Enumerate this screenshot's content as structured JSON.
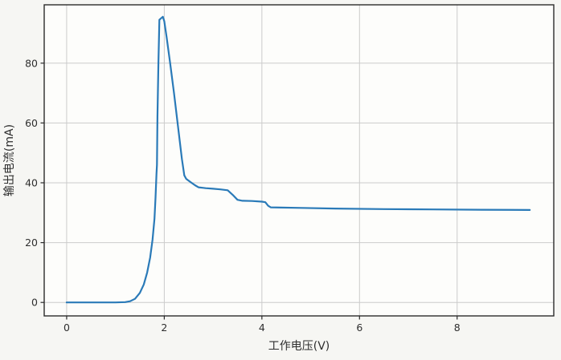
{
  "figure": {
    "background": "#f6f6f3",
    "plot_background": "#fdfdfb",
    "line_color": "#2a7ab8",
    "grid_color": "#cbcbcb",
    "spine_color": "#2b2b2b",
    "tick_label_color": "#2e2e2e"
  },
  "chart_data": {
    "type": "line",
    "title": "",
    "xlabel": "工作电压(V)",
    "ylabel": "输出电流(mA)",
    "x_ticks": [
      0,
      2,
      4,
      6,
      8
    ],
    "y_ticks": [
      0,
      20,
      40,
      60,
      80
    ],
    "xlim": [
      -0.46,
      9.98
    ],
    "ylim": [
      -4.5,
      99.5
    ],
    "grid": true,
    "legend_position": "none",
    "series": [
      {
        "name": "输出电流",
        "x": [
          0,
          0.6,
          1.0,
          1.2,
          1.3,
          1.4,
          1.5,
          1.58,
          1.65,
          1.71,
          1.76,
          1.8,
          1.82,
          1.84,
          1.85,
          1.86,
          1.88,
          1.9,
          1.97,
          2.0,
          2.05,
          2.12,
          2.2,
          2.28,
          2.36,
          2.41,
          2.45,
          2.55,
          2.63,
          2.7,
          2.85,
          3.0,
          3.15,
          3.3,
          3.4,
          3.5,
          3.6,
          3.8,
          4.0,
          4.07,
          4.13,
          4.18,
          4.4,
          4.8,
          5.5,
          6.5,
          7.5,
          8.5,
          9.49
        ],
        "y": [
          0,
          0,
          0,
          0.1,
          0.4,
          1.2,
          3.2,
          6,
          10,
          15,
          21,
          28,
          35,
          43,
          46,
          62,
          80,
          94.5,
          95.5,
          94,
          88.5,
          80,
          70,
          59,
          48,
          42.5,
          41.3,
          40.1,
          39.2,
          38.5,
          38.2,
          38.0,
          37.8,
          37.5,
          36,
          34.3,
          34.0,
          33.9,
          33.7,
          33.5,
          32.3,
          31.8,
          31.7,
          31.6,
          31.4,
          31.2,
          31.1,
          31.0,
          30.9
        ]
      }
    ]
  }
}
